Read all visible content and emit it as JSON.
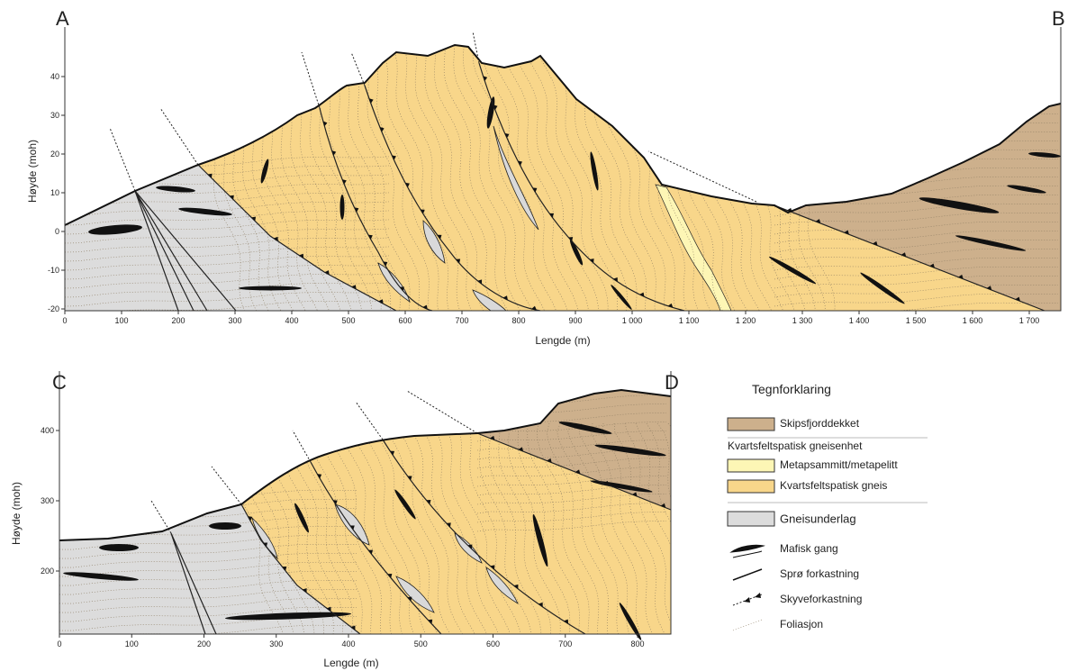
{
  "sections": [
    {
      "start_label": "A",
      "end_label": "B",
      "y_label": "Høyde (moh)",
      "x_label": "Lengde (m)",
      "yticks": [
        -20,
        -10,
        0,
        10,
        20,
        30,
        40
      ],
      "xticks": [
        0,
        100,
        200,
        300,
        400,
        500,
        600,
        700,
        800,
        900,
        {
          "value": 1000,
          "label": "1 000"
        },
        {
          "value": 1100,
          "label": "1 100"
        },
        {
          "value": 1200,
          "label": "1 200"
        },
        {
          "value": 1300,
          "label": "1 300"
        },
        {
          "value": 1400,
          "label": "1 400"
        },
        {
          "value": 1500,
          "label": "1 500"
        },
        {
          "value": 1600,
          "label": "1 600"
        },
        {
          "value": 1700,
          "label": "1 700"
        }
      ]
    },
    {
      "start_label": "C",
      "end_label": "D",
      "y_label": "Høyde (moh)",
      "x_label": "Lengde (m)",
      "yticks": [
        200,
        300,
        400
      ],
      "xticks": [
        0,
        100,
        200,
        300,
        400,
        500,
        600,
        700,
        800
      ]
    }
  ],
  "legend": {
    "title": "Tegnforklaring",
    "items": [
      "Skipsfjorddekket",
      "Kvartsfeltspatisk gneisenhet",
      "Metapsammitt/metapelitt",
      "Kvartsfeltspatisk gneis",
      "Gneisunderlag",
      "Mafisk gang",
      "Sprø forkastning",
      "Skyveforkastning",
      "Foliasjon"
    ]
  }
}
